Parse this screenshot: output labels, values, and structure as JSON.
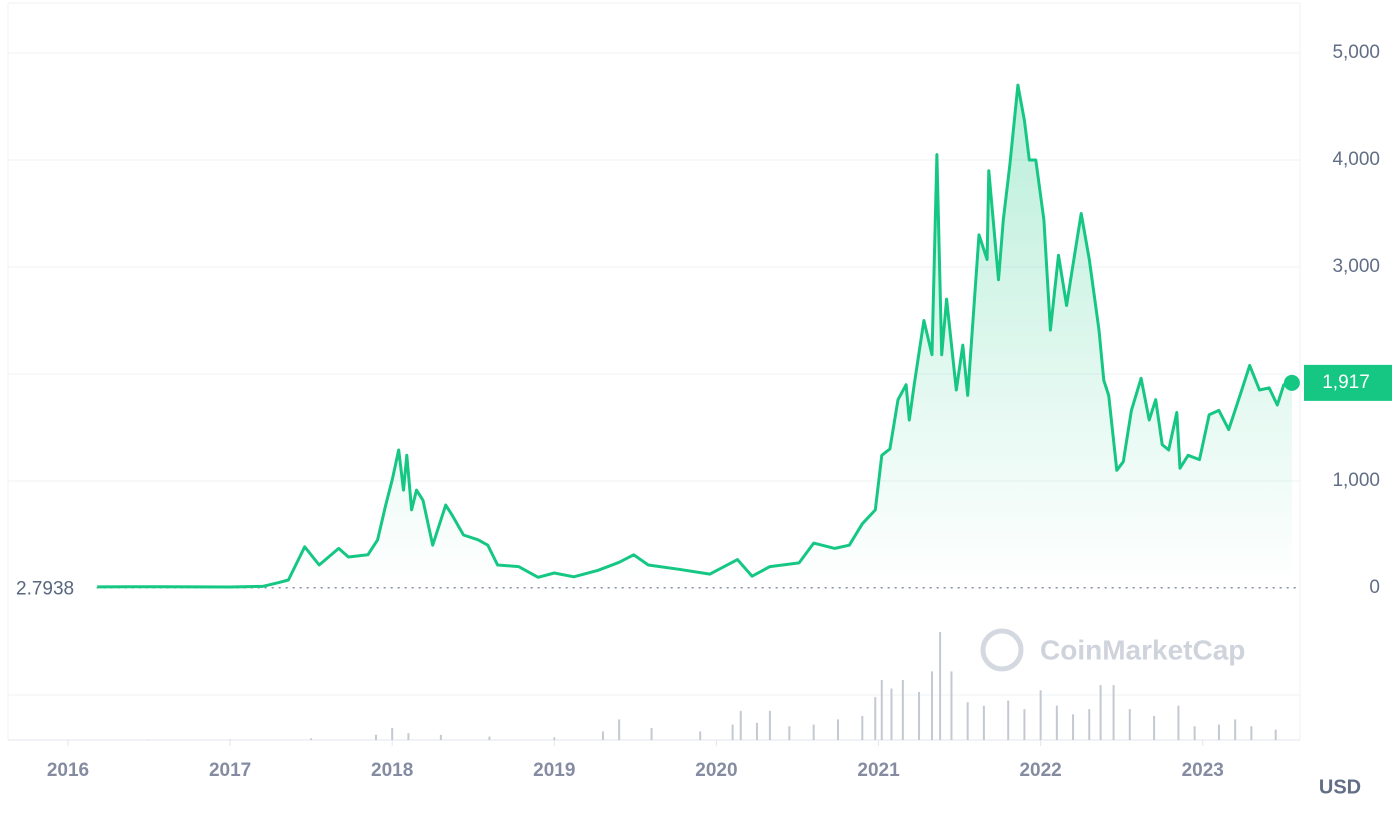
{
  "chart_data": {
    "type": "line",
    "x": [
      2016.18,
      2016.4,
      2016.6,
      2016.8,
      2017.0,
      2017.2,
      2017.3,
      2017.36,
      2017.46,
      2017.55,
      2017.67,
      2017.73,
      2017.85,
      2017.91,
      2017.96,
      2018.0,
      2018.04,
      2018.07,
      2018.09,
      2018.12,
      2018.15,
      2018.19,
      2018.25,
      2018.33,
      2018.37,
      2018.44,
      2018.53,
      2018.59,
      2018.65,
      2018.78,
      2018.9,
      2019.0,
      2019.12,
      2019.27,
      2019.4,
      2019.49,
      2019.58,
      2019.77,
      2019.96,
      2020.13,
      2020.22,
      2020.33,
      2020.51,
      2020.6,
      2020.73,
      2020.82,
      2020.9,
      2020.98,
      2021.02,
      2021.07,
      2021.12,
      2021.17,
      2021.19,
      2021.22,
      2021.28,
      2021.33,
      2021.36,
      2021.39,
      2021.42,
      2021.48,
      2021.52,
      2021.55,
      2021.62,
      2021.67,
      2021.68,
      2021.74,
      2021.77,
      2021.81,
      2021.86,
      2021.9,
      2021.93,
      2021.97,
      2022.02,
      2022.06,
      2022.11,
      2022.16,
      2022.2,
      2022.25,
      2022.3,
      2022.36,
      2022.39,
      2022.42,
      2022.47,
      2022.51,
      2022.56,
      2022.62,
      2022.67,
      2022.71,
      2022.75,
      2022.79,
      2022.84,
      2022.86,
      2022.91,
      2022.98,
      2023.04,
      2023.1,
      2023.16,
      2023.23,
      2023.29,
      2023.35,
      2023.41,
      2023.46,
      2023.5,
      2023.55
    ],
    "values": [
      10,
      12,
      11,
      10,
      9,
      15,
      50,
      75,
      385,
      215,
      370,
      290,
      310,
      450,
      775,
      1010,
      1290,
      915,
      1240,
      730,
      915,
      820,
      400,
      775,
      680,
      495,
      450,
      400,
      215,
      200,
      100,
      140,
      105,
      165,
      240,
      310,
      215,
      175,
      130,
      265,
      110,
      200,
      235,
      420,
      370,
      400,
      600,
      730,
      1240,
      1300,
      1760,
      1900,
      1570,
      1900,
      2500,
      2180,
      4050,
      2180,
      2700,
      1850,
      2270,
      1800,
      3300,
      3070,
      3900,
      2880,
      3440,
      3950,
      4700,
      4370,
      4000,
      4000,
      3440,
      2410,
      3110,
      2640,
      3020,
      3500,
      3070,
      2410,
      1940,
      1800,
      1100,
      1180,
      1660,
      1960,
      1570,
      1760,
      1340,
      1290,
      1640,
      1120,
      1240,
      1200,
      1620,
      1660,
      1480,
      1800,
      2080,
      1850,
      1870,
      1710,
      1900,
      1917
    ],
    "color": "#16c784",
    "xlim": [
      2015.63,
      2023.6
    ],
    "xticks": [
      2016,
      2017,
      2018,
      2019,
      2020,
      2021,
      2022,
      2023
    ],
    "ylim": [
      0,
      5467
    ],
    "yticks": [
      0,
      {
        "value": 1000,
        "label": "1,000"
      },
      {
        "value": 2000,
        "label": ""
      },
      {
        "value": 3000,
        "label": "3,000"
      },
      {
        "value": 4000,
        "label": "4,000"
      },
      {
        "value": 5000,
        "label": "5,000"
      }
    ],
    "grid": true,
    "start_value": 2.7938,
    "last_value": 1917,
    "last_value_label": "1,917",
    "unit": "USD",
    "watermark": "CoinMarketCap",
    "volume": {
      "color": "#c3c8d2",
      "x": [
        2016.5,
        2017.0,
        2017.5,
        2017.9,
        2018.0,
        2018.1,
        2018.3,
        2018.6,
        2019.0,
        2019.3,
        2019.4,
        2019.6,
        2019.9,
        2020.1,
        2020.15,
        2020.25,
        2020.33,
        2020.45,
        2020.6,
        2020.75,
        2020.9,
        2020.98,
        2021.02,
        2021.08,
        2021.15,
        2021.25,
        2021.33,
        2021.38,
        2021.45,
        2021.55,
        2021.65,
        2021.8,
        2021.9,
        2022.0,
        2022.1,
        2022.2,
        2022.3,
        2022.37,
        2022.45,
        2022.55,
        2022.7,
        2022.85,
        2022.95,
        2023.1,
        2023.2,
        2023.3,
        2023.45
      ],
      "values": [
        0.2,
        0.3,
        1,
        3,
        7,
        4,
        3,
        2,
        1.5,
        5,
        12,
        7,
        5,
        9,
        17,
        10,
        17,
        8,
        9,
        12,
        14,
        25,
        35,
        30,
        35,
        28,
        40,
        63,
        40,
        22,
        20,
        23,
        18,
        29,
        20,
        15,
        18,
        32,
        32,
        18,
        14,
        20,
        8,
        9,
        12,
        8,
        6
      ],
      "y2lim": [
        0,
        70
      ]
    }
  }
}
